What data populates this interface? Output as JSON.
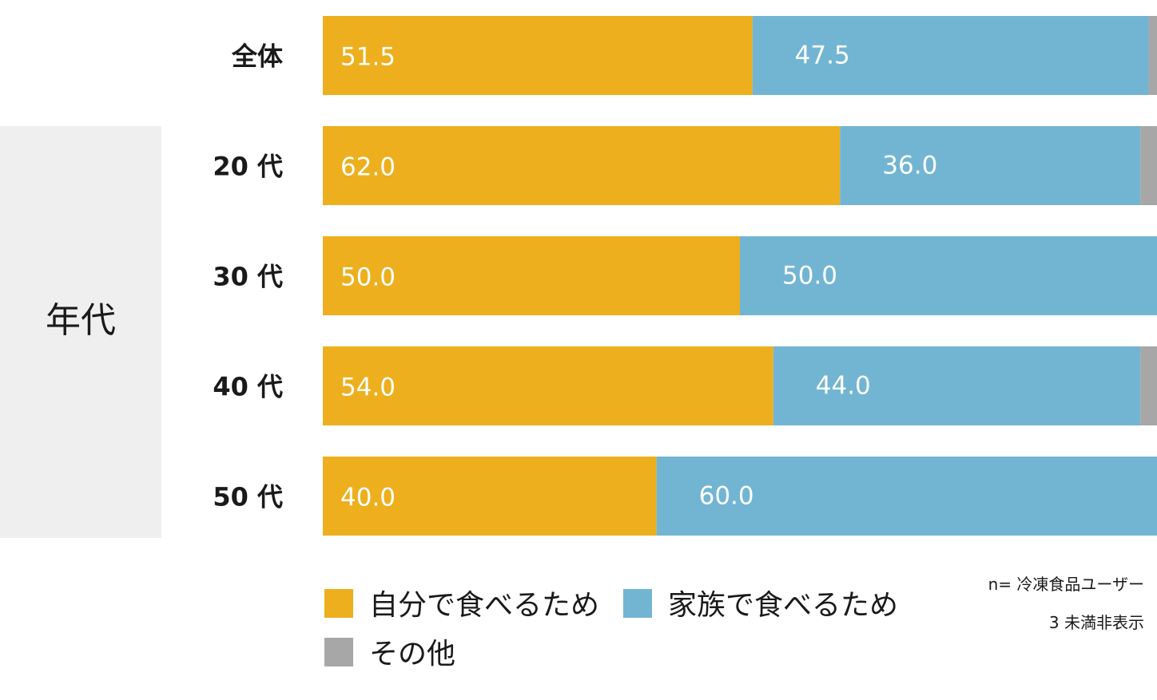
{
  "chart_data": {
    "type": "bar",
    "orientation": "horizontal",
    "stacked": true,
    "percent_stacked": true,
    "categories": [
      "全体",
      "20 代",
      "30 代",
      "40 代",
      "50 代"
    ],
    "group_label": "年代",
    "group_categories": [
      "20 代",
      "30 代",
      "40 代",
      "50 代"
    ],
    "series": [
      {
        "name": "自分で食べるため",
        "color": "#edaf1d",
        "values": [
          51.5,
          62.0,
          50.0,
          54.0,
          40.0
        ],
        "labels": [
          "51.5",
          "62.0",
          "50.0",
          "54.0",
          "40.0"
        ]
      },
      {
        "name": "家族で食べるため",
        "color": "#72b5d3",
        "values": [
          47.5,
          36.0,
          50.0,
          44.0,
          60.0
        ],
        "labels": [
          "47.5",
          "36.0",
          "50.0",
          "44.0",
          "60.0"
        ]
      },
      {
        "name": "その他",
        "color": "#a7a7a7",
        "values": [
          1.0,
          2.0,
          0.0,
          2.0,
          0.0
        ],
        "labels": [
          "",
          "",
          "",
          "",
          ""
        ]
      }
    ],
    "xlim": [
      0,
      100
    ],
    "grid": false,
    "legend": "bottom",
    "notes": [
      "n= 冷凍食品ユーザー",
      "3 未満非表示"
    ]
  }
}
